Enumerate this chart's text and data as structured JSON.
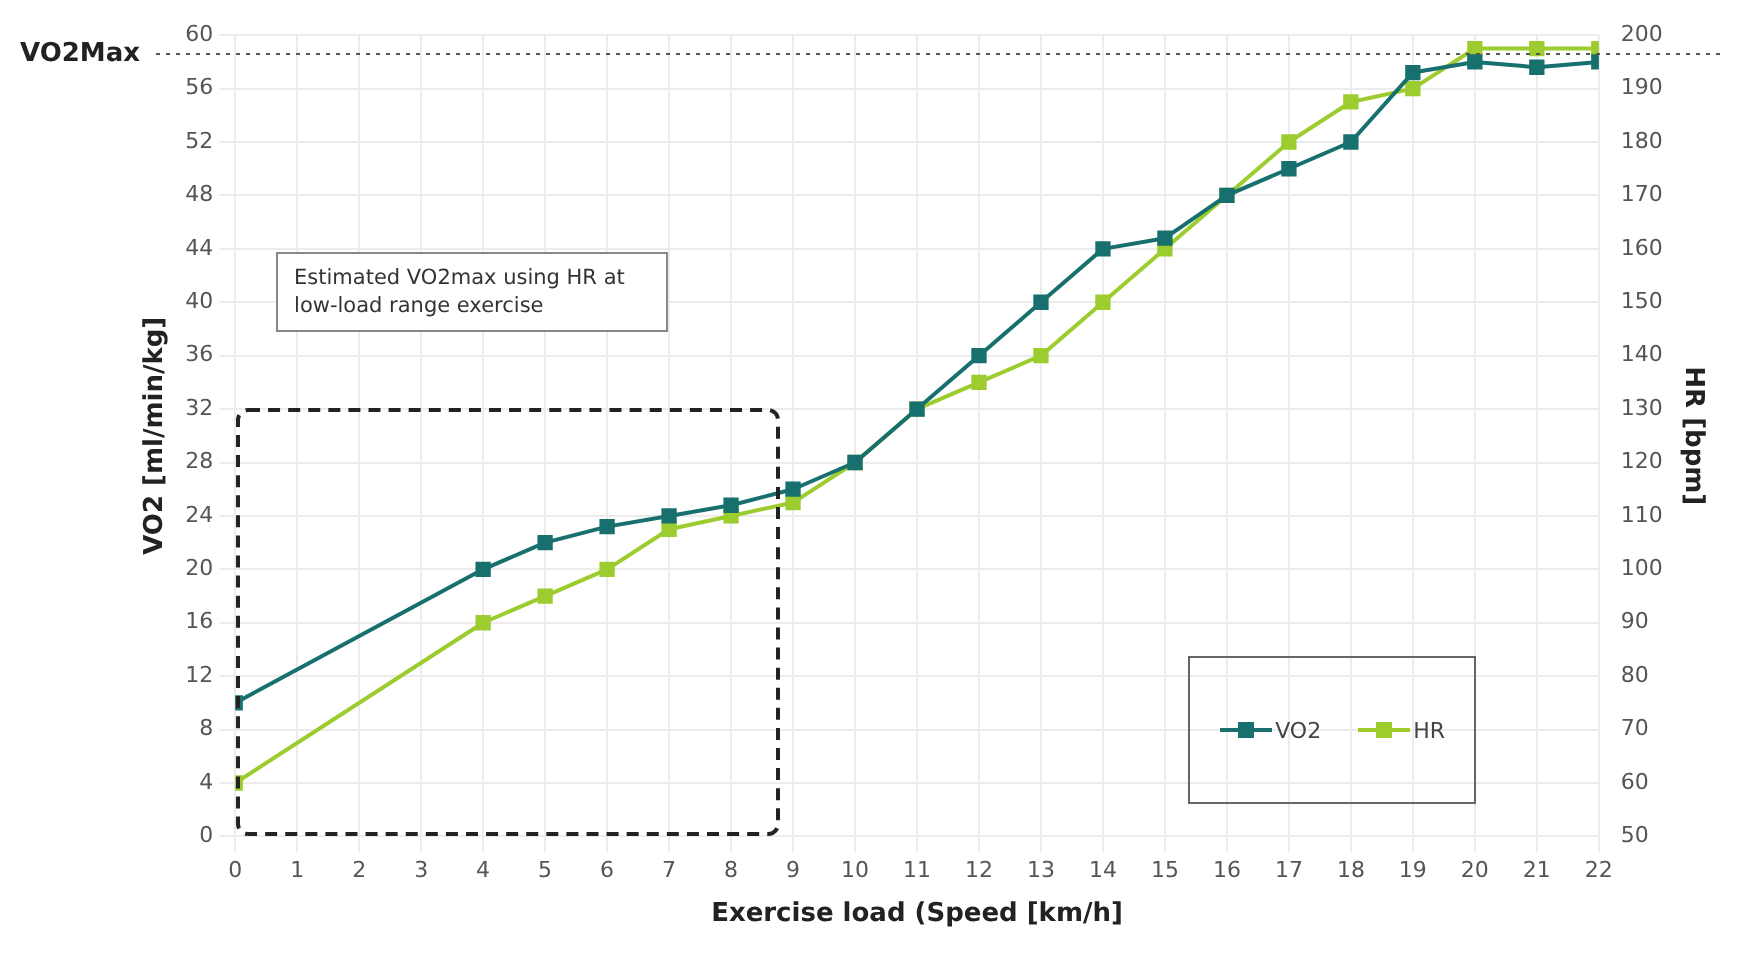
{
  "chart_data": {
    "type": "line",
    "xlabel": "Exercise load (Speed [km/h]",
    "ylabel": "VO2 [ml/min/kg]",
    "y2label": "HR [bpm]",
    "x": [
      0,
      4,
      5,
      6,
      7,
      8,
      9,
      10,
      11,
      12,
      13,
      14,
      15,
      16,
      17,
      18,
      19,
      20,
      21,
      22
    ],
    "series": [
      {
        "name": "VO2",
        "color": "#17706e",
        "values": [
          10,
          20,
          22,
          23.2,
          24,
          24.8,
          26,
          28,
          32,
          36,
          40,
          44,
          44.8,
          48,
          50,
          52,
          57.2,
          58,
          57.6,
          58
        ]
      },
      {
        "name": "HR",
        "color": "#9ccc2e",
        "axis": "y2",
        "values": [
          60,
          90,
          95,
          100,
          107.5,
          110,
          112.5,
          120,
          130,
          135,
          140,
          150,
          160,
          170,
          180,
          187.5,
          190,
          197.5,
          197.5,
          197.5
        ]
      }
    ],
    "xlim": [
      0,
      22
    ],
    "xticks": [
      0,
      1,
      2,
      3,
      4,
      5,
      6,
      7,
      8,
      9,
      10,
      11,
      12,
      13,
      14,
      15,
      16,
      17,
      18,
      19,
      20,
      21,
      22
    ],
    "ylim": [
      0,
      60
    ],
    "yticks": [
      0,
      4,
      8,
      12,
      16,
      20,
      24,
      28,
      32,
      36,
      40,
      44,
      48,
      52,
      56,
      60
    ],
    "y2lim": [
      50,
      200
    ],
    "y2ticks": [
      50,
      60,
      70,
      80,
      90,
      100,
      110,
      120,
      130,
      140,
      150,
      160,
      170,
      180,
      190,
      200
    ],
    "ref_lines": [
      {
        "axis": "y",
        "value": 58.6,
        "label": "VO2Max",
        "line_style": "dotted",
        "color": "#555555"
      }
    ],
    "annotations": [
      "Estimated VO2max using HR at low-load range exercise"
    ],
    "grid": true,
    "legend": "bottom right",
    "marker": "square",
    "line_style": "solid"
  }
}
